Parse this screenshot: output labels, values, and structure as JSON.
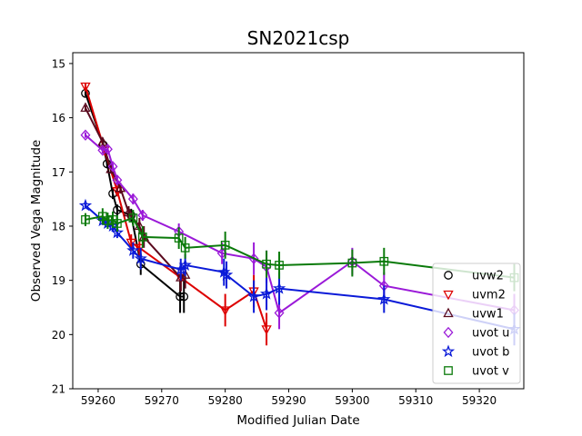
{
  "chart_data": {
    "type": "scatter",
    "title": "SN2021csp",
    "xlabel": "Modified Julian Date",
    "ylabel": "Observed Vega Magnitude",
    "xlim": [
      59256,
      59327
    ],
    "ylim": [
      21,
      14.8
    ],
    "y_inverted": true,
    "x_ticks": [
      59260,
      59270,
      59280,
      59290,
      59300,
      59310,
      59320
    ],
    "y_ticks": [
      15,
      16,
      17,
      18,
      19,
      20,
      21
    ],
    "grid": false,
    "legend_position": "lower-right",
    "series": [
      {
        "name": "uvw2",
        "color": "#000000",
        "marker": "circle",
        "points": [
          {
            "x": 59258.0,
            "y": 15.55,
            "err": 0.05
          },
          {
            "x": 59260.8,
            "y": 16.5,
            "err": 0.08
          },
          {
            "x": 59261.4,
            "y": 16.85,
            "err": 0.08
          },
          {
            "x": 59262.3,
            "y": 17.4,
            "err": 0.1
          },
          {
            "x": 59263.0,
            "y": 17.7,
            "err": 0.1
          },
          {
            "x": 59265.2,
            "y": 17.8,
            "err": 0.12
          },
          {
            "x": 59266.7,
            "y": 18.7,
            "err": 0.2
          },
          {
            "x": 59272.9,
            "y": 19.3,
            "err": 0.3
          },
          {
            "x": 59273.5,
            "y": 19.3,
            "err": 0.3
          }
        ]
      },
      {
        "name": "uvm2",
        "color": "#dd0000",
        "marker": "triangle-down",
        "points": [
          {
            "x": 59258.0,
            "y": 15.42,
            "err": 0.05
          },
          {
            "x": 59261.0,
            "y": 16.6,
            "err": 0.08
          },
          {
            "x": 59263.0,
            "y": 17.35,
            "err": 0.1
          },
          {
            "x": 59265.2,
            "y": 18.3,
            "err": 0.15
          },
          {
            "x": 59266.5,
            "y": 18.4,
            "err": 0.15
          },
          {
            "x": 59273.0,
            "y": 18.95,
            "err": 0.25
          },
          {
            "x": 59280.0,
            "y": 19.55,
            "err": 0.3
          },
          {
            "x": 59284.5,
            "y": 19.2,
            "err": 0.3
          },
          {
            "x": 59286.5,
            "y": 19.9,
            "err": 0.3
          }
        ]
      },
      {
        "name": "uvw1",
        "color": "#5a0a1e",
        "marker": "triangle-up",
        "points": [
          {
            "x": 59258.0,
            "y": 15.82,
            "err": 0.05
          },
          {
            "x": 59260.7,
            "y": 16.45,
            "err": 0.08
          },
          {
            "x": 59262.0,
            "y": 16.95,
            "err": 0.08
          },
          {
            "x": 59263.5,
            "y": 17.3,
            "err": 0.1
          },
          {
            "x": 59264.8,
            "y": 17.75,
            "err": 0.12
          },
          {
            "x": 59266.5,
            "y": 18.0,
            "err": 0.15
          },
          {
            "x": 59267.2,
            "y": 18.2,
            "err": 0.2
          },
          {
            "x": 59273.0,
            "y": 18.95,
            "err": 0.25
          },
          {
            "x": 59273.7,
            "y": 18.9,
            "err": 0.25
          }
        ]
      },
      {
        "name": "uvot u",
        "color": "#9a19d8",
        "marker": "diamond",
        "points": [
          {
            "x": 59258.0,
            "y": 16.32,
            "err": 0.05
          },
          {
            "x": 59260.7,
            "y": 16.6,
            "err": 0.06
          },
          {
            "x": 59261.5,
            "y": 16.58,
            "err": 0.06
          },
          {
            "x": 59262.3,
            "y": 16.9,
            "err": 0.06
          },
          {
            "x": 59263.0,
            "y": 17.15,
            "err": 0.08
          },
          {
            "x": 59265.5,
            "y": 17.5,
            "err": 0.1
          },
          {
            "x": 59267.0,
            "y": 17.8,
            "err": 0.1
          },
          {
            "x": 59272.7,
            "y": 18.1,
            "err": 0.15
          },
          {
            "x": 59279.5,
            "y": 18.5,
            "err": 0.2
          },
          {
            "x": 59284.5,
            "y": 18.6,
            "err": 0.3
          },
          {
            "x": 59286.5,
            "y": 18.75,
            "err": 0.3
          },
          {
            "x": 59288.5,
            "y": 19.6,
            "err": 0.3
          },
          {
            "x": 59300.0,
            "y": 18.65,
            "err": 0.25
          },
          {
            "x": 59305.0,
            "y": 19.1,
            "err": 0.25
          },
          {
            "x": 59325.5,
            "y": 19.55,
            "err": 0.3
          }
        ]
      },
      {
        "name": "uvot b",
        "color": "#0a1ad8",
        "marker": "star",
        "points": [
          {
            "x": 59258.0,
            "y": 17.62,
            "err": 0.05
          },
          {
            "x": 59260.7,
            "y": 17.9,
            "err": 0.08
          },
          {
            "x": 59261.5,
            "y": 17.95,
            "err": 0.08
          },
          {
            "x": 59262.3,
            "y": 18.0,
            "err": 0.1
          },
          {
            "x": 59263.0,
            "y": 18.12,
            "err": 0.1
          },
          {
            "x": 59265.5,
            "y": 18.45,
            "err": 0.15
          },
          {
            "x": 59266.7,
            "y": 18.6,
            "err": 0.2
          },
          {
            "x": 59273.0,
            "y": 18.8,
            "err": 0.2
          },
          {
            "x": 59273.7,
            "y": 18.72,
            "err": 0.2
          },
          {
            "x": 59279.8,
            "y": 18.85,
            "err": 0.25
          },
          {
            "x": 59280.2,
            "y": 18.9,
            "err": 0.25
          },
          {
            "x": 59284.5,
            "y": 19.3,
            "err": 0.3
          },
          {
            "x": 59286.5,
            "y": 19.25,
            "err": 0.3
          },
          {
            "x": 59288.5,
            "y": 19.15,
            "err": 0.3
          },
          {
            "x": 59305.0,
            "y": 19.35,
            "err": 0.25
          },
          {
            "x": 59325.5,
            "y": 19.9,
            "err": 0.3
          }
        ]
      },
      {
        "name": "uvot v",
        "color": "#0a7a0a",
        "marker": "square",
        "points": [
          {
            "x": 59258.0,
            "y": 17.88,
            "err": 0.12
          },
          {
            "x": 59260.7,
            "y": 17.82,
            "err": 0.15
          },
          {
            "x": 59261.5,
            "y": 17.9,
            "err": 0.15
          },
          {
            "x": 59262.3,
            "y": 17.88,
            "err": 0.15
          },
          {
            "x": 59263.0,
            "y": 17.95,
            "err": 0.15
          },
          {
            "x": 59265.5,
            "y": 17.85,
            "err": 0.15
          },
          {
            "x": 59267.0,
            "y": 18.2,
            "err": 0.2
          },
          {
            "x": 59272.7,
            "y": 18.22,
            "err": 0.2
          },
          {
            "x": 59273.7,
            "y": 18.4,
            "err": 0.2
          },
          {
            "x": 59280.0,
            "y": 18.35,
            "err": 0.25
          },
          {
            "x": 59286.5,
            "y": 18.7,
            "err": 0.25
          },
          {
            "x": 59288.5,
            "y": 18.72,
            "err": 0.25
          },
          {
            "x": 59300.0,
            "y": 18.68,
            "err": 0.25
          },
          {
            "x": 59305.0,
            "y": 18.65,
            "err": 0.25
          },
          {
            "x": 59325.5,
            "y": 18.95,
            "err": 0.25
          }
        ]
      }
    ]
  }
}
